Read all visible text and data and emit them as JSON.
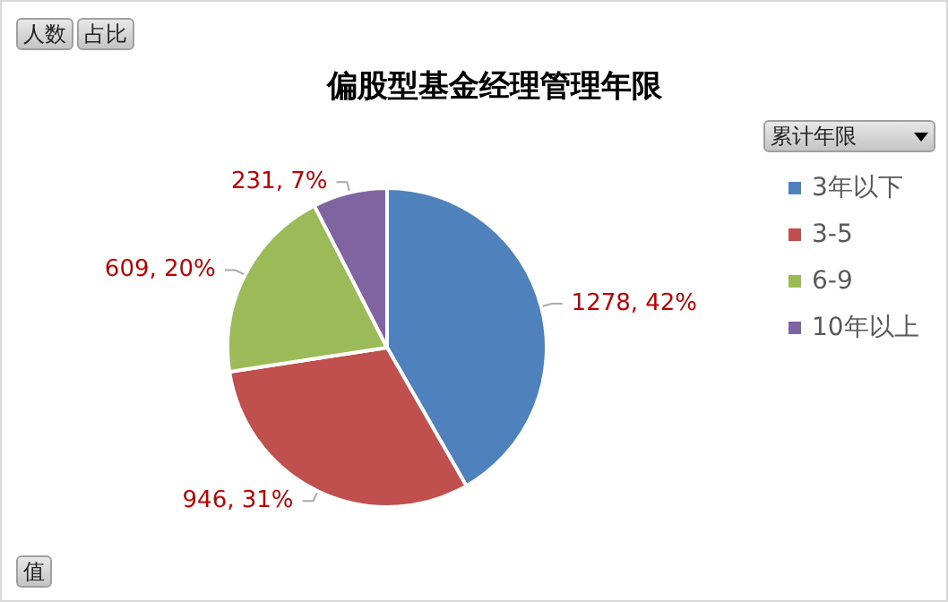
{
  "chart_data": {
    "type": "pie",
    "title": "偏股型基金经理管理年限",
    "categories": [
      "3年以下",
      "3-5",
      "6-9",
      "10年以上"
    ],
    "values": [
      1278,
      946,
      609,
      231
    ],
    "colors": [
      "#4f81bd",
      "#c0504d",
      "#9bbb59",
      "#8064a2"
    ],
    "value_labels": [
      "1278, 42%",
      "946, 31%",
      "609, 20%",
      "231, 7%"
    ],
    "legend_title": "累计年限",
    "legend": "right",
    "annotations": [
      "人数",
      "占比",
      "值"
    ]
  }
}
